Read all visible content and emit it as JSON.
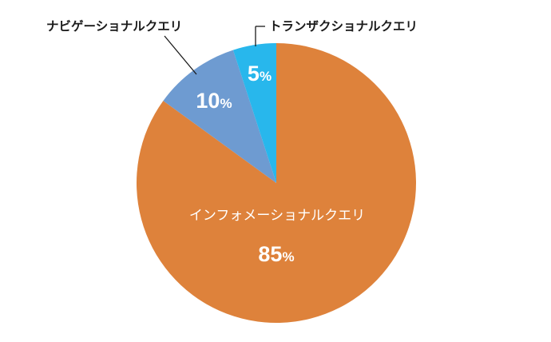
{
  "chart_data": {
    "type": "pie",
    "title": "",
    "slices": [
      {
        "label": "インフォメーショナルクエリ",
        "value": 85,
        "color": "#DE823B"
      },
      {
        "label": "ナビゲーショナルクエリ",
        "value": 10,
        "color": "#6E9BD1"
      },
      {
        "label": "トランザクショナルクエリ",
        "value": 5,
        "color": "#28B7EC"
      }
    ],
    "start_direction": "top",
    "order": "clockwise",
    "legend": "none",
    "percent_suffix": "%"
  }
}
